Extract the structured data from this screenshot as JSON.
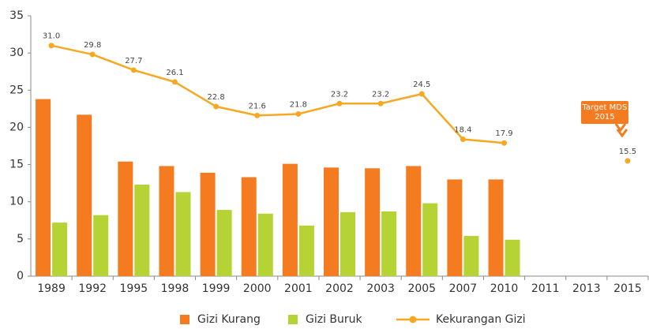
{
  "chart_data": {
    "type": "bar_line",
    "categories": [
      "1989",
      "1992",
      "1995",
      "1998",
      "1999",
      "2000",
      "2001",
      "2002",
      "2003",
      "2005",
      "2007",
      "2010",
      "2011",
      "2013",
      "2015"
    ],
    "series": [
      {
        "name": "Gizi Kurang",
        "color": "#f47b20",
        "type": "bar",
        "values": [
          23.8,
          21.7,
          15.4,
          14.8,
          13.9,
          13.3,
          15.1,
          14.6,
          14.5,
          14.8,
          13.0,
          13.0,
          null,
          null,
          null
        ]
      },
      {
        "name": "Gizi Buruk",
        "color": "#b5d334",
        "type": "bar",
        "values": [
          7.2,
          8.2,
          12.3,
          11.3,
          8.9,
          8.4,
          6.8,
          8.6,
          8.7,
          9.8,
          5.4,
          4.9,
          null,
          null,
          null
        ]
      },
      {
        "name": "Kekurangan Gizi",
        "color": "#f7a823",
        "type": "line",
        "values": [
          31.0,
          29.8,
          27.7,
          26.1,
          22.8,
          21.6,
          21.8,
          23.2,
          23.2,
          24.5,
          18.4,
          17.9,
          null,
          null,
          15.5
        ],
        "value_labels": [
          "31.0",
          "29.8",
          "27.7",
          "26.1",
          "22.8",
          "21.6",
          "21.8",
          "23.2",
          "23.2",
          "24.5",
          "18.4",
          "17.9",
          null,
          null,
          "15.5"
        ]
      }
    ],
    "annotation": [
      "Target MDS",
      "2015"
    ],
    "ylim": [
      0,
      35
    ],
    "yticks": [
      0,
      5,
      10,
      15,
      20,
      25,
      30,
      35
    ],
    "grid": false,
    "legend": "bottom"
  }
}
